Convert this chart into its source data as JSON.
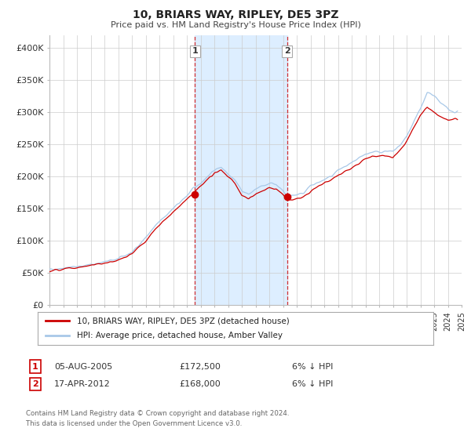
{
  "title": "10, BRIARS WAY, RIPLEY, DE5 3PZ",
  "subtitle": "Price paid vs. HM Land Registry's House Price Index (HPI)",
  "ylim": [
    0,
    420000
  ],
  "yticks": [
    0,
    50000,
    100000,
    150000,
    200000,
    250000,
    300000,
    350000,
    400000
  ],
  "ytick_labels": [
    "£0",
    "£50K",
    "£100K",
    "£150K",
    "£200K",
    "£250K",
    "£300K",
    "£350K",
    "£400K"
  ],
  "sale1_date": 2005.59,
  "sale1_price": 172500,
  "sale2_date": 2012.29,
  "sale2_price": 168000,
  "sale1_date_str": "05-AUG-2005",
  "sale1_price_str": "£172,500",
  "sale1_pct": "6% ↓ HPI",
  "sale2_date_str": "17-APR-2012",
  "sale2_price_str": "£168,000",
  "sale2_pct": "6% ↓ HPI",
  "shade_color": "#ddeeff",
  "hpi_color": "#a8c8e8",
  "price_color": "#cc0000",
  "grid_color": "#cccccc",
  "bg_color": "#ffffff",
  "legend_label1": "10, BRIARS WAY, RIPLEY, DE5 3PZ (detached house)",
  "legend_label2": "HPI: Average price, detached house, Amber Valley",
  "footer1": "Contains HM Land Registry data © Crown copyright and database right 2024.",
  "footer2": "This data is licensed under the Open Government Licence v3.0.",
  "hpi_anchors_t": [
    1995.0,
    1996.0,
    1997.0,
    1998.0,
    1999.0,
    2000.0,
    2001.0,
    2002.0,
    2003.0,
    2004.0,
    2005.0,
    2005.5,
    2006.0,
    2006.5,
    2007.0,
    2007.5,
    2008.0,
    2008.5,
    2009.0,
    2009.5,
    2010.0,
    2010.5,
    2011.0,
    2011.5,
    2012.0,
    2012.3,
    2012.5,
    2013.0,
    2013.5,
    2014.0,
    2014.5,
    2015.0,
    2015.5,
    2016.0,
    2016.5,
    2017.0,
    2017.5,
    2018.0,
    2018.5,
    2019.0,
    2019.5,
    2020.0,
    2020.5,
    2021.0,
    2021.5,
    2022.0,
    2022.5,
    2023.0,
    2023.5,
    2024.0,
    2024.5
  ],
  "hpi_anchors_v": [
    55000,
    58000,
    60000,
    63000,
    67000,
    72000,
    82000,
    105000,
    130000,
    150000,
    170000,
    182000,
    190000,
    200000,
    210000,
    215000,
    205000,
    195000,
    178000,
    172000,
    180000,
    185000,
    190000,
    188000,
    178000,
    168000,
    170000,
    172000,
    175000,
    185000,
    190000,
    195000,
    200000,
    210000,
    215000,
    220000,
    228000,
    235000,
    238000,
    238000,
    240000,
    238000,
    248000,
    262000,
    285000,
    305000,
    330000,
    325000,
    315000,
    305000,
    300000
  ],
  "price_anchors_t": [
    1995.0,
    1996.0,
    1997.0,
    1998.0,
    1999.0,
    2000.0,
    2001.0,
    2002.0,
    2003.0,
    2004.0,
    2005.0,
    2005.5,
    2006.0,
    2006.5,
    2007.0,
    2007.5,
    2008.0,
    2008.5,
    2009.0,
    2009.5,
    2010.0,
    2010.5,
    2011.0,
    2011.5,
    2012.0,
    2012.3,
    2012.5,
    2013.0,
    2013.5,
    2014.0,
    2014.5,
    2015.0,
    2015.5,
    2016.0,
    2016.5,
    2017.0,
    2017.5,
    2018.0,
    2018.5,
    2019.0,
    2019.5,
    2020.0,
    2020.5,
    2021.0,
    2021.5,
    2022.0,
    2022.5,
    2023.0,
    2023.5,
    2024.0,
    2024.5
  ],
  "price_anchors_v": [
    53000,
    56000,
    58000,
    62000,
    65000,
    70000,
    80000,
    100000,
    125000,
    145000,
    165000,
    175000,
    185000,
    195000,
    205000,
    210000,
    200000,
    190000,
    170000,
    165000,
    172000,
    178000,
    183000,
    180000,
    172000,
    165000,
    163000,
    165000,
    168000,
    178000,
    185000,
    190000,
    195000,
    202000,
    208000,
    213000,
    220000,
    228000,
    232000,
    232000,
    233000,
    230000,
    240000,
    255000,
    275000,
    295000,
    308000,
    300000,
    292000,
    288000,
    290000
  ]
}
